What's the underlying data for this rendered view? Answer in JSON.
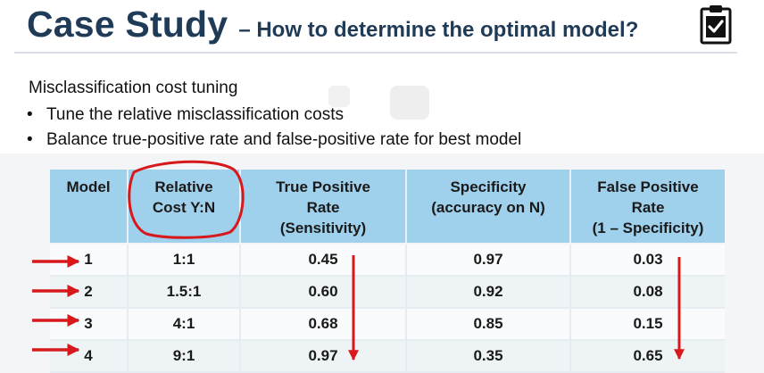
{
  "header": {
    "title": "Case Study",
    "subtitle": "– How to determine the optimal model?",
    "icon": "clipboard-check-icon"
  },
  "content": {
    "heading": "Misclassification cost tuning",
    "bullets": [
      "Tune the relative misclassification costs",
      "Balance true-positive rate and false-positive rate for best model"
    ]
  },
  "table": {
    "headers": [
      "Model",
      "Relative\nCost Y:N",
      "True Positive\nRate\n(Sensitivity)",
      "Specificity\n(accuracy on N)",
      "False Positive\nRate\n(1 – Specificity)"
    ],
    "rows": [
      [
        "1",
        "1:1",
        "0.45",
        "0.97",
        "0.03"
      ],
      [
        "2",
        "1.5:1",
        "0.60",
        "0.92",
        "0.08"
      ],
      [
        "3",
        "4:1",
        "0.68",
        "0.85",
        "0.15"
      ],
      [
        "4",
        "9:1",
        "0.97",
        "0.35",
        "0.65"
      ]
    ]
  },
  "annotations": {
    "color": "#d7191c"
  },
  "colors": {
    "title": "#1f3b57",
    "header_fill": "#9fd0ec"
  }
}
